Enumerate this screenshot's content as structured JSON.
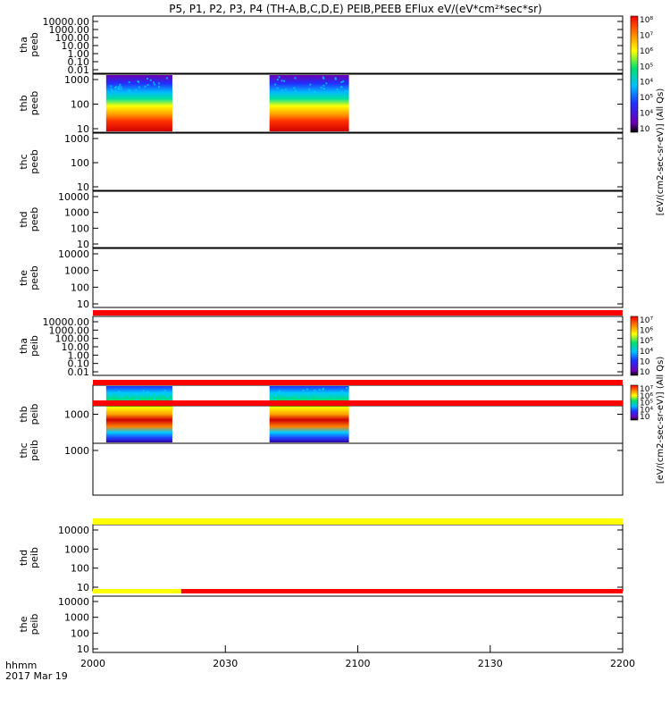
{
  "title": "P5, P1, P2, P3, P4 (TH-A,B,C,D,E) PEIB,PEEB EFlux eV/(eV*cm²*sec*sr)",
  "time_label_1": "hhmm",
  "time_label_2": "2017 Mar 19",
  "time_ticks": [
    "2000",
    "2030",
    "2100",
    "2130",
    "2200"
  ],
  "colorbar_peeb_label": "[eV/(cm2-sec-sr-eV)] (All Qs)",
  "colorbar_peib_label": "[eV/(cm2-sec-sr-eV)] (All Qs)",
  "colors": {
    "flag_red": "#ff0000",
    "flag_yellow": "#ffff00"
  },
  "chart_data": {
    "type": "heatmap",
    "x_range": [
      "2000",
      "2200"
    ],
    "panels": [
      {
        "probe": "tha",
        "product": "peeb",
        "scale": "log",
        "ylim": [
          0.01,
          30000
        ],
        "ticks": [
          "10000.00",
          "1000.00",
          "100.00",
          "10.00",
          "1.00",
          "0.10",
          "0.01"
        ],
        "data_intervals": []
      },
      {
        "probe": "thb",
        "product": "peeb",
        "scale": "log",
        "ylim": [
          5,
          3000
        ],
        "ticks": [
          "1000",
          "100",
          "10"
        ],
        "data_intervals": [
          [
            "2003",
            "2018"
          ],
          [
            "2040",
            "2058"
          ]
        ]
      },
      {
        "probe": "thc",
        "product": "peeb",
        "scale": "log",
        "ylim": [
          5,
          3000
        ],
        "ticks": [
          "1000",
          "100",
          "10"
        ],
        "data_intervals": []
      },
      {
        "probe": "thd",
        "product": "peeb",
        "scale": "log",
        "ylim": [
          5,
          30000
        ],
        "ticks": [
          "10000",
          "1000",
          "100",
          "10"
        ],
        "data_intervals": []
      },
      {
        "probe": "the",
        "product": "peeb",
        "scale": "log",
        "ylim": [
          5,
          30000
        ],
        "ticks": [
          "10000",
          "1000",
          "100",
          "10"
        ],
        "data_intervals": []
      },
      {
        "probe": "tha",
        "product": "peib",
        "scale": "log",
        "ylim": [
          0.01,
          30000
        ],
        "ticks": [
          "10000.00",
          "1000.00",
          "100.00",
          "10.00",
          "1.00",
          "0.10",
          "0.01"
        ],
        "data_intervals": []
      },
      {
        "probe": "thb",
        "product": "peib",
        "scale": "log",
        "ylim": [
          250,
          4000
        ],
        "ticks": [
          "1000"
        ],
        "data_intervals": [
          [
            "2003",
            "2018"
          ],
          [
            "2040",
            "2058"
          ]
        ]
      },
      {
        "probe": "thc",
        "product": "peib",
        "scale": "log",
        "ylim": [
          250,
          4000
        ],
        "ticks": [
          "1000"
        ],
        "data_intervals": []
      },
      {
        "probe": "thd",
        "product": "peib",
        "scale": "log",
        "ylim": [
          5,
          30000
        ],
        "ticks": [
          "10000",
          "1000",
          "100",
          "10"
        ],
        "data_intervals": []
      },
      {
        "probe": "the",
        "product": "peib",
        "scale": "log",
        "ylim": [
          5,
          30000
        ],
        "ticks": [
          "10000",
          "1000",
          "100",
          "10"
        ],
        "data_intervals": []
      }
    ],
    "colorbars": [
      {
        "for": "peeb",
        "scale": "log",
        "ticks": [
          "10⁸",
          "10⁷",
          "10⁶",
          "10⁵",
          "10⁴",
          "10⁵",
          "10⁴",
          "10⁳"
        ]
      },
      {
        "for": "peib",
        "scale": "log",
        "ticks": [
          "10⁷",
          "10⁶",
          "10⁵",
          "10⁴",
          "10⁳",
          "10⁲"
        ]
      },
      {
        "for": "peib-thb",
        "scale": "log",
        "ticks": [
          "10⁷",
          "10⁶",
          "10⁵",
          "10⁴",
          "10⁳"
        ]
      }
    ],
    "status_bars": [
      {
        "y_between_panels": [
          5,
          6
        ],
        "color": "red",
        "range": [
          "2000",
          "2200"
        ]
      },
      {
        "y_between_panels": [
          6,
          7
        ],
        "color": "red",
        "range": [
          "2000",
          "2200"
        ]
      },
      {
        "y_between_panels": [
          7,
          8
        ],
        "color": "red",
        "range": [
          "2000",
          "2200"
        ]
      },
      {
        "y_between_panels": [
          8,
          9
        ],
        "color": "yellow",
        "range": [
          "2000",
          "2200"
        ]
      },
      {
        "y_between_panels": [
          9,
          10
        ],
        "color": "yellow",
        "range": [
          "2000",
          "2020"
        ]
      },
      {
        "y_between_panels": [
          9,
          10
        ],
        "color": "red",
        "range": [
          "2020",
          "2200"
        ]
      }
    ]
  }
}
